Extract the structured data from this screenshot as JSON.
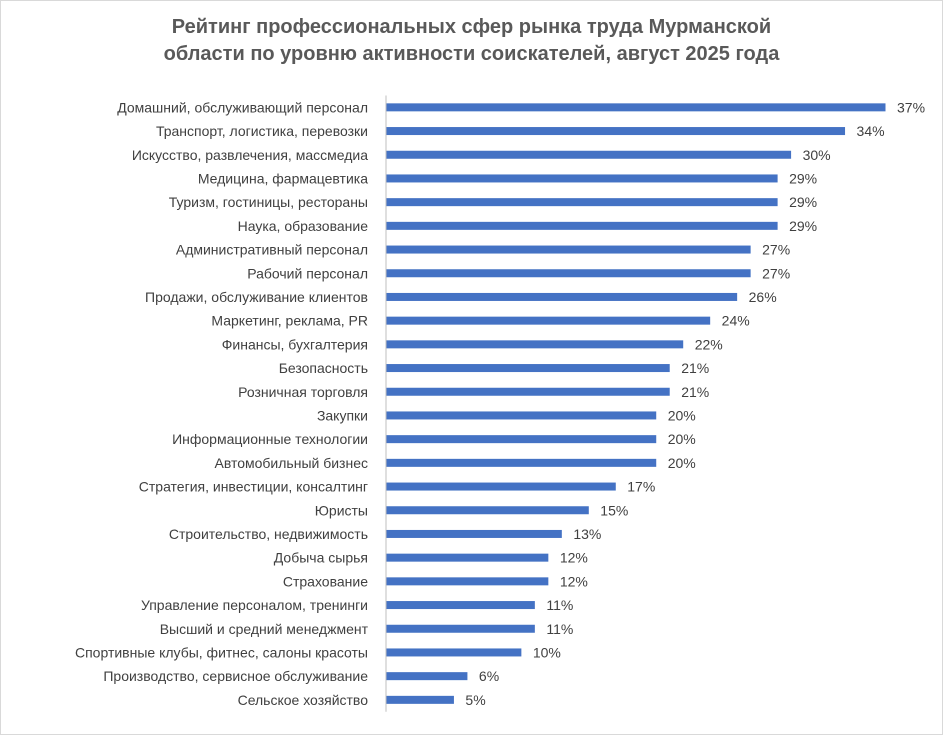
{
  "chart_data": {
    "type": "bar",
    "orientation": "horizontal",
    "title": "Рейтинг профессиональных сфер рынка труда Мурманской области по уровню активности соискателей, август 2025 года",
    "title_lines": [
      "Рейтинг профессиональных сфер рынка труда Мурманской",
      "области по уровню активности соискателей, август 2025 года"
    ],
    "categories": [
      "Домашний, обслуживающий персонал",
      "Транспорт, логистика, перевозки",
      "Искусство, развлечения, массмедиа",
      "Медицина, фармацевтика",
      "Туризм, гостиницы, рестораны",
      "Наука, образование",
      "Административный персонал",
      "Рабочий персонал",
      "Продажи, обслуживание клиентов",
      "Маркетинг, реклама, PR",
      "Финансы, бухгалтерия",
      "Безопасность",
      "Розничная торговля",
      "Закупки",
      "Информационные технологии",
      "Автомобильный бизнес",
      "Стратегия, инвестиции, консалтинг",
      "Юристы",
      "Строительство, недвижимость",
      "Добыча сырья",
      "Страхование",
      "Управление персоналом, тренинги",
      "Высший и средний менеджмент",
      "Спортивные клубы, фитнес, салоны красоты",
      "Производство, сервисное обслуживание",
      "Сельское хозяйство"
    ],
    "values": [
      37,
      34,
      30,
      29,
      29,
      29,
      27,
      27,
      26,
      24,
      22,
      21,
      21,
      20,
      20,
      20,
      17,
      15,
      13,
      12,
      12,
      11,
      11,
      10,
      6,
      5
    ],
    "value_labels": [
      "37%",
      "34%",
      "30%",
      "29%",
      "29%",
      "29%",
      "27%",
      "27%",
      "26%",
      "24%",
      "22%",
      "21%",
      "21%",
      "20%",
      "20%",
      "20%",
      "17%",
      "15%",
      "13%",
      "12%",
      "12%",
      "11%",
      "11%",
      "10%",
      "6%",
      "5%"
    ],
    "xlim": [
      0,
      37
    ],
    "grid": false,
    "legend": "none",
    "bar_color": "#4472c4",
    "axis_color": "#bfbfbf",
    "text_color": "#404040",
    "title_color": "#595959"
  }
}
